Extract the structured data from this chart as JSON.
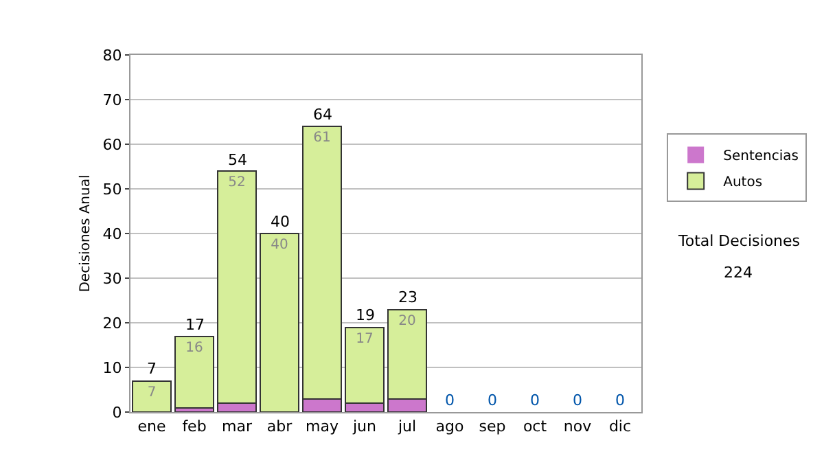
{
  "chart_data": {
    "type": "bar",
    "stacked": true,
    "ylabel": "Decisiones Anual",
    "categories": [
      "ene",
      "feb",
      "mar",
      "abr",
      "may",
      "jun",
      "jul",
      "ago",
      "sep",
      "oct",
      "nov",
      "dic"
    ],
    "series": [
      {
        "name": "Sentencias",
        "color": "#cc77cc",
        "values": [
          0,
          1,
          2,
          0,
          3,
          2,
          3,
          0,
          0,
          0,
          0,
          0
        ]
      },
      {
        "name": "Autos",
        "color": "#d6ee9a",
        "values": [
          7,
          16,
          52,
          40,
          61,
          17,
          20,
          0,
          0,
          0,
          0,
          0
        ],
        "value_labels": [
          "7",
          "16",
          "52",
          "40",
          "61",
          "17",
          "20",
          null,
          null,
          null,
          null,
          null
        ]
      }
    ],
    "totals": [
      "7",
      "17",
      "54",
      "40",
      "64",
      "19",
      "23",
      "0",
      "0",
      "0",
      "0",
      "0"
    ],
    "ylim": [
      0,
      80
    ],
    "yticks": [
      0,
      10,
      20,
      30,
      40,
      50,
      60,
      70,
      80
    ],
    "grid": "y",
    "legend": "right",
    "annotations": [
      "Total Decisiones",
      "224"
    ]
  }
}
